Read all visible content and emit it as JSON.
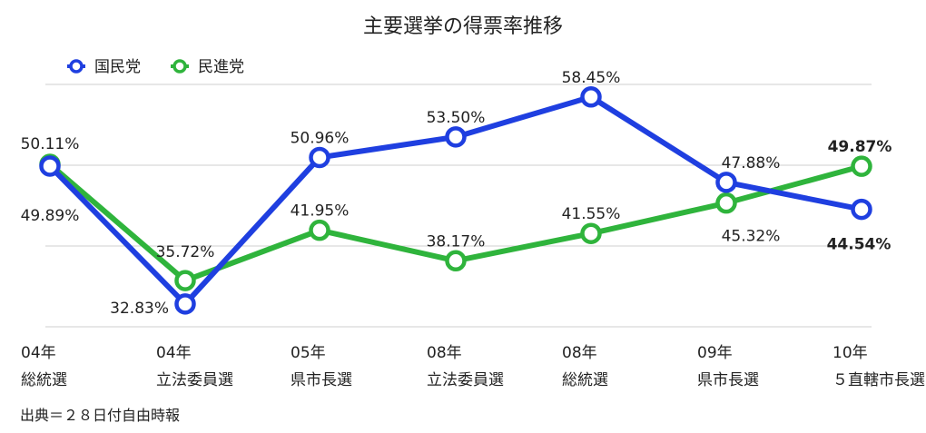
{
  "chart_data": {
    "type": "line",
    "title": "主要選挙の得票率推移",
    "source": "出典＝２８日付自由時報",
    "categories": [
      {
        "line1": "04年",
        "line2": "総統選"
      },
      {
        "line1": "04年",
        "line2": "立法委員選"
      },
      {
        "line1": "05年",
        "line2": "県市長選"
      },
      {
        "line1": "08年",
        "line2": "立法委員選"
      },
      {
        "line1": "08年",
        "line2": "総統選"
      },
      {
        "line1": "09年",
        "line2": "県市長選"
      },
      {
        "line1": "10年",
        "line2": "５直轄市長選"
      }
    ],
    "series": [
      {
        "name": "国民党",
        "color": "#1f3fe0",
        "values": [
          49.89,
          32.83,
          50.96,
          53.5,
          58.45,
          47.88,
          44.54
        ],
        "labels": [
          "49.89%",
          "32.83%",
          "50.96%",
          "53.50%",
          "58.45%",
          "47.88%",
          "44.54%"
        ]
      },
      {
        "name": "民進党",
        "color": "#2fb43c",
        "values": [
          50.11,
          35.72,
          41.95,
          38.17,
          41.55,
          45.32,
          49.87
        ],
        "labels": [
          "50.11%",
          "35.72%",
          "41.95%",
          "38.17%",
          "41.55%",
          "45.32%",
          "49.87%"
        ]
      }
    ],
    "ylim": [
      30,
      60
    ],
    "grid": true,
    "legend_position": "top-left"
  }
}
